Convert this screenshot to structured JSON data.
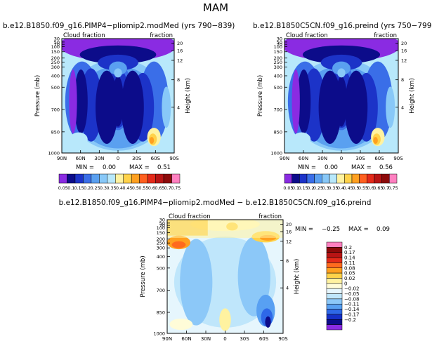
{
  "figure": {
    "main_title": "MAM"
  },
  "colors": {
    "cbar_abs": [
      "#8a2be2",
      "#0c0c8a",
      "#1c33c8",
      "#3a6ee8",
      "#5aa0f0",
      "#88c8f8",
      "#b8e8fb",
      "#fff2a0",
      "#ffd24a",
      "#ffa020",
      "#ff6020",
      "#e42a1a",
      "#b81414",
      "#8c0a0a",
      "#ff80c0"
    ],
    "cbar_diff": [
      "#8a2be2",
      "#0c0c8a",
      "#1530c8",
      "#2e68e8",
      "#58a0f2",
      "#8cc8f8",
      "#bfe6fb",
      "#e6f6fd",
      "#fffcd8",
      "#fff2a0",
      "#ffd24a",
      "#ffa020",
      "#ff6a1e",
      "#e42a1a",
      "#b81414",
      "#8c0a0a",
      "#ff80c0"
    ]
  },
  "chart_data": [
    {
      "type": "heatmap",
      "title": "b.e12.B1850.f09_g16.PIMP4−pliomip2.modMed (yrs 790−839)",
      "left_label": "Cloud fraction",
      "right_label": "fraction",
      "xlabel": "",
      "ylabel": "Pressure (mb)",
      "y2label": "Height (km)",
      "x_ticks": [
        "90N",
        "60N",
        "30N",
        "0",
        "30S",
        "60S",
        "90S"
      ],
      "y_ticks": [
        30,
        50,
        70,
        100,
        150,
        200,
        250,
        300,
        400,
        500,
        700,
        850,
        1000
      ],
      "y2_ticks": [
        20,
        16,
        12,
        8,
        4
      ],
      "min_label": "MIN = ",
      "min_value": "0.00",
      "max_label": "MAX = ",
      "max_value": "0.51",
      "legend_placement": "bottom",
      "colorbar_labels": [
        "0.05",
        "0.1",
        "0.15",
        "0.2",
        "0.25",
        "0.3",
        "0.35",
        "0.4",
        "0.45",
        "0.5",
        "0.55",
        "0.6",
        "0.65",
        "0.7",
        "0.75"
      ]
    },
    {
      "type": "heatmap",
      "title": "b.e12.B1850C5CN.f09_g16.preind (yrs 750−799)",
      "left_label": "Cloud fraction",
      "right_label": "fraction",
      "xlabel": "",
      "ylabel": "Pressure (mb)",
      "y2label": "Height (km)",
      "x_ticks": [
        "90N",
        "60N",
        "30N",
        "0",
        "30S",
        "60S",
        "90S"
      ],
      "y_ticks": [
        30,
        50,
        70,
        100,
        150,
        200,
        250,
        300,
        400,
        500,
        700,
        850,
        1000
      ],
      "y2_ticks": [
        20,
        16,
        12,
        8,
        4
      ],
      "min_label": "MIN = ",
      "min_value": "0.00",
      "max_label": "MAX = ",
      "max_value": "0.56",
      "legend_placement": "bottom",
      "colorbar_labels": [
        "0.05",
        "0.1",
        "0.15",
        "0.2",
        "0.25",
        "0.3",
        "0.35",
        "0.4",
        "0.45",
        "0.5",
        "0.55",
        "0.6",
        "0.65",
        "0.7",
        "0.75"
      ]
    },
    {
      "type": "heatmap",
      "title": "b.e12.B1850.f09_g16.PIMP4−pliomip2.modMed − b.e12.B1850C5CN.f09_g16.preind",
      "left_label": "Cloud fraction",
      "right_label": "fraction",
      "xlabel": "",
      "ylabel": "Pressure (mb)",
      "y2label": "Height (km)",
      "x_ticks": [
        "90N",
        "60N",
        "30N",
        "0",
        "30S",
        "60S",
        "90S"
      ],
      "y_ticks": [
        30,
        50,
        70,
        100,
        150,
        200,
        250,
        300,
        400,
        500,
        700,
        850,
        1000
      ],
      "y2_ticks": [
        20,
        16,
        12,
        8,
        4
      ],
      "min_label": "MIN = ",
      "min_value": "−0.25",
      "max_label": "MAX = ",
      "max_value": "0.09",
      "legend_placement": "right",
      "colorbar_labels": [
        "0.2",
        "0.17",
        "0.14",
        "0.11",
        "0.08",
        "0.05",
        "0.02",
        "0",
        "−0.02",
        "−0.05",
        "−0.08",
        "−0.11",
        "−0.14",
        "−0.17",
        "−0.2"
      ]
    }
  ]
}
